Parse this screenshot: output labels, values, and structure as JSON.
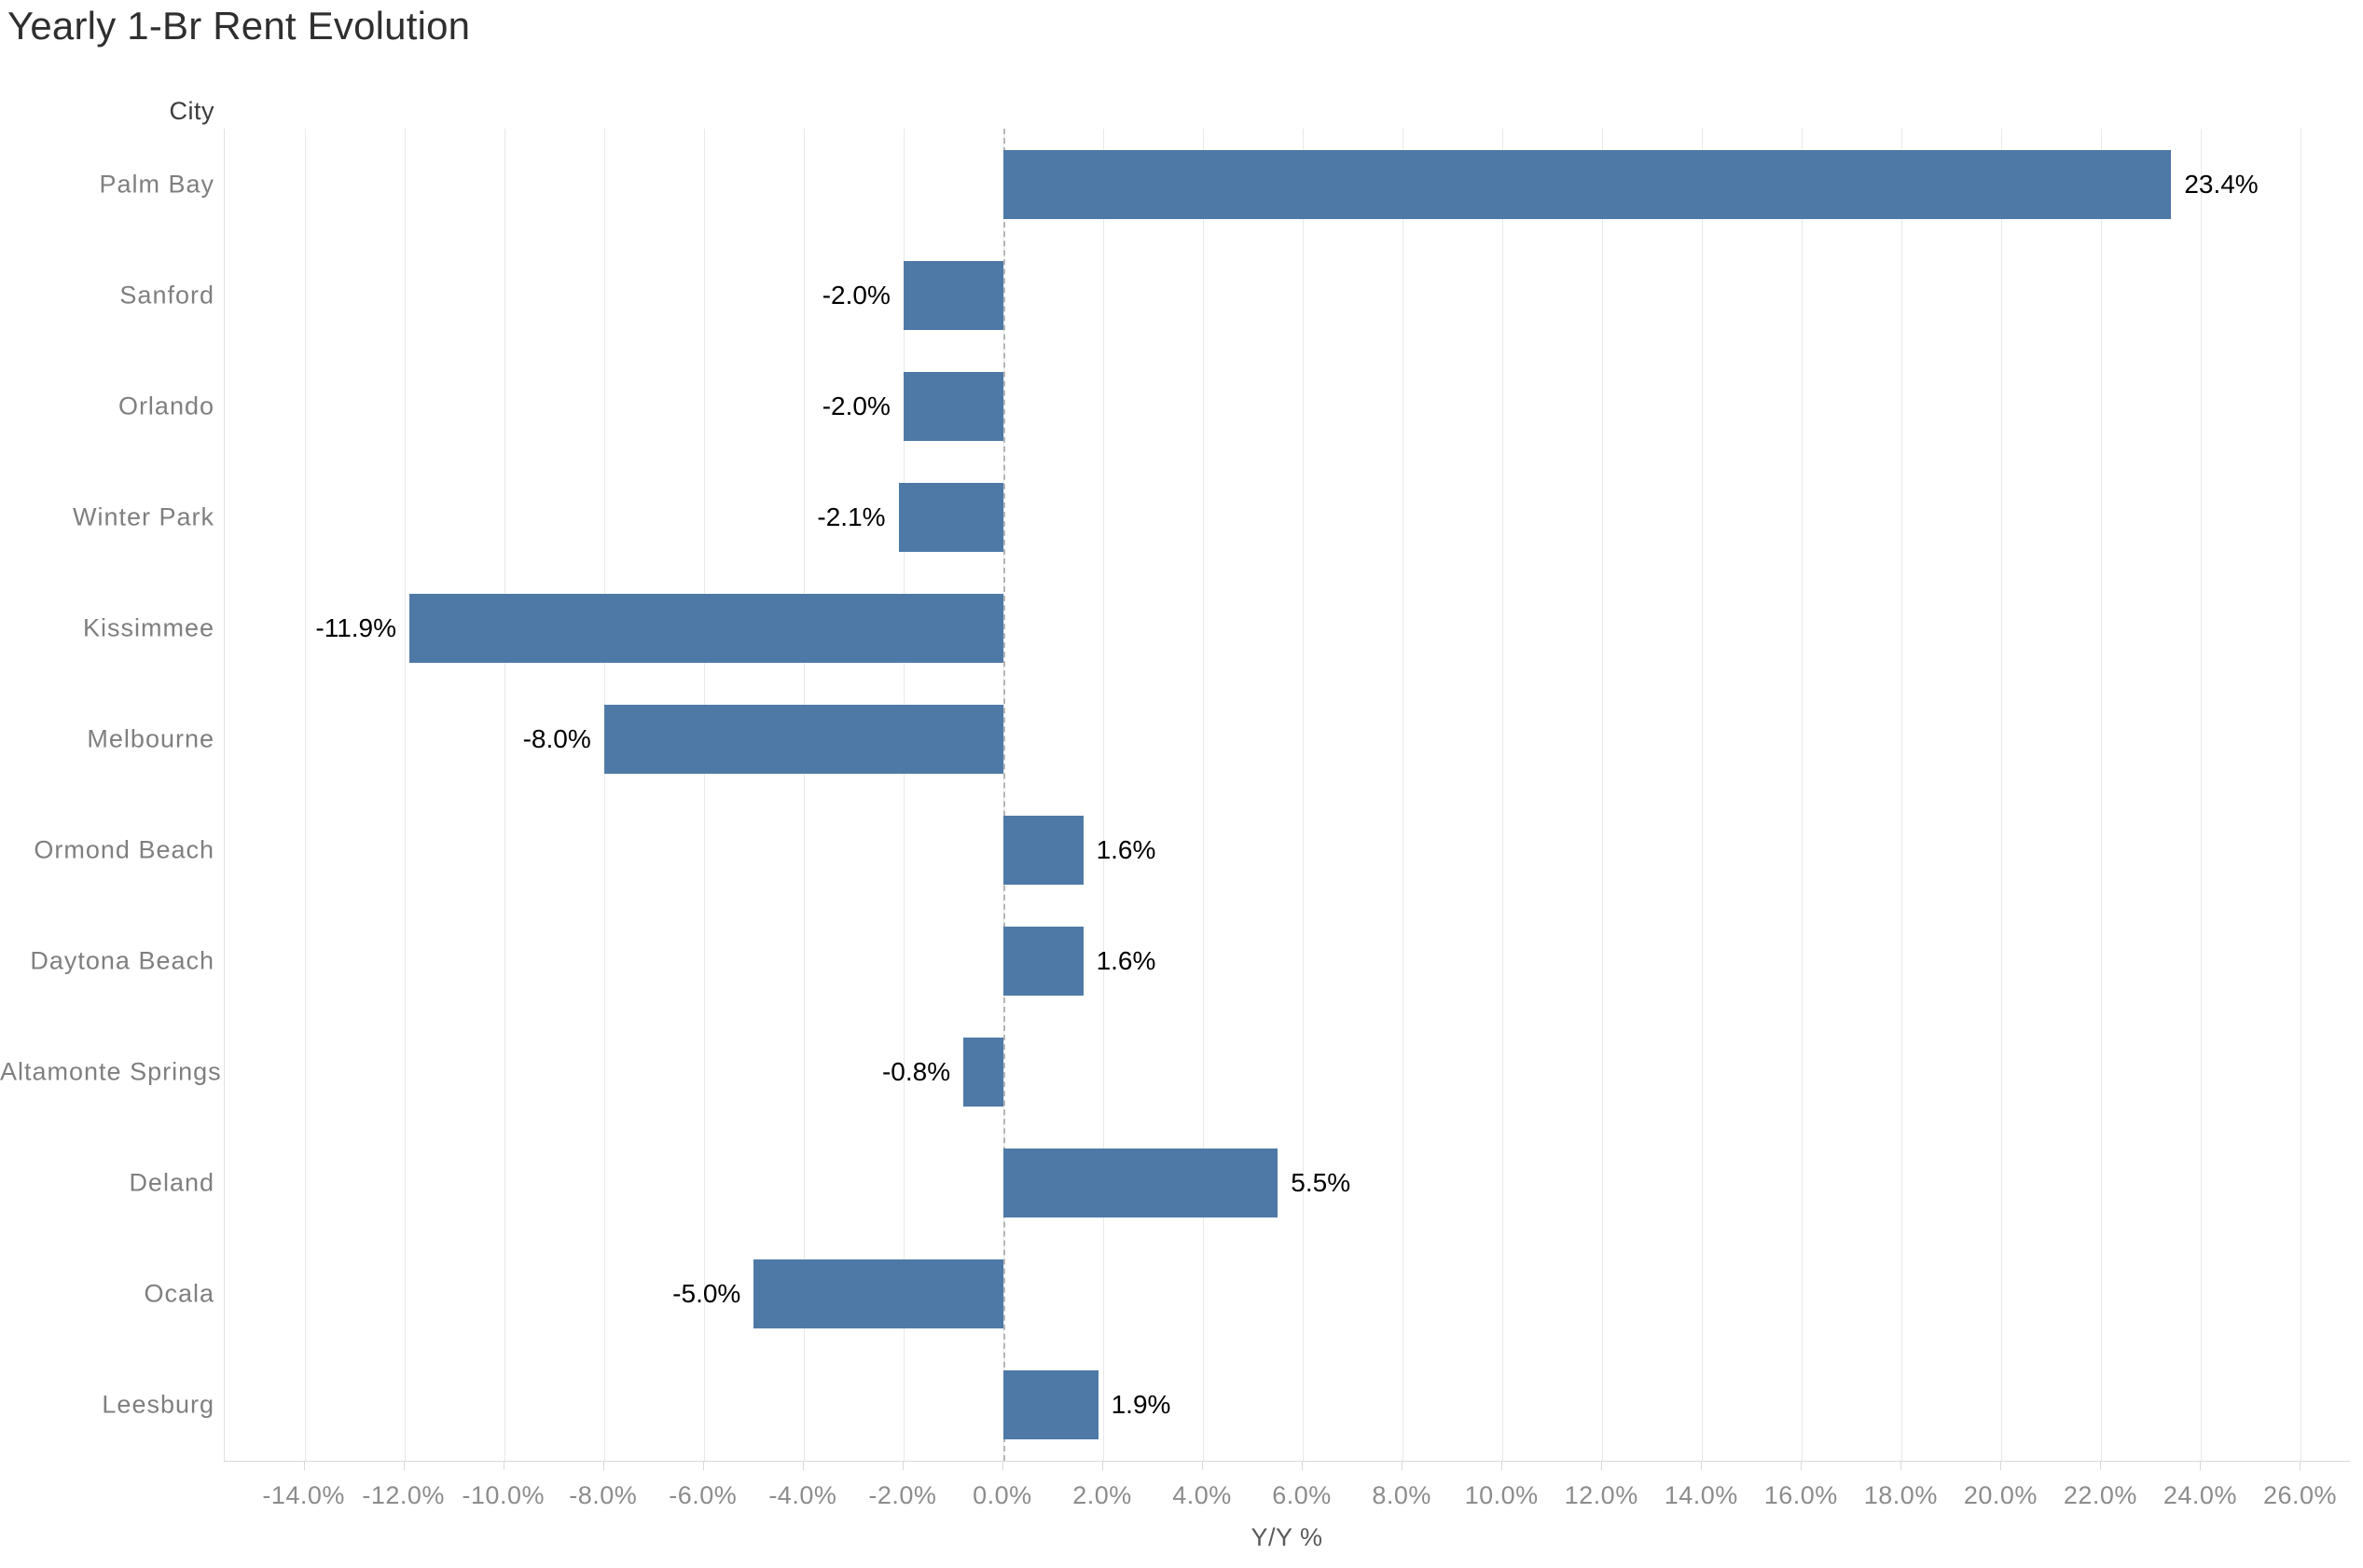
{
  "title": "Yearly 1-Br Rent Evolution",
  "row_header": "City",
  "colors": {
    "bar": "#4e79a7",
    "title_text": "#2f2f2f",
    "category_text": "#7f7f7f",
    "tick_text": "#8c8c8c",
    "axis_title_text": "#5a5a5a",
    "header_text": "#3c3c3c",
    "value_label_text": "#000000",
    "gridline": "#e9e9e9",
    "axis_line": "#d9d9d9",
    "zero_line": "#b5b5b5",
    "background": "#ffffff"
  },
  "x_axis": {
    "label": "Y/Y %",
    "tick_values": [
      -14,
      -12,
      -10,
      -8,
      -6,
      -4,
      -2,
      0,
      2,
      4,
      6,
      8,
      10,
      12,
      14,
      16,
      18,
      20,
      22,
      24,
      26
    ],
    "tick_labels": [
      "-14.0%",
      "-12.0%",
      "-10.0%",
      "-8.0%",
      "-6.0%",
      "-4.0%",
      "-2.0%",
      "0.0%",
      "2.0%",
      "4.0%",
      "6.0%",
      "8.0%",
      "10.0%",
      "12.0%",
      "14.0%",
      "16.0%",
      "18.0%",
      "20.0%",
      "22.0%",
      "24.0%",
      "26.0%"
    ],
    "range": [
      -15.6,
      27.0
    ]
  },
  "chart_data": {
    "type": "bar",
    "orientation": "horizontal",
    "title": "Yearly 1-Br Rent Evolution",
    "xlabel": "Y/Y %",
    "ylabel": "City",
    "xlim": [
      -15.6,
      27.0
    ],
    "grid": true,
    "zero_line": "dashed",
    "legend": "none",
    "bar_color": "#4e79a7",
    "categories": [
      "Palm Bay",
      "Sanford",
      "Orlando",
      "Winter Park",
      "Kissimmee",
      "Melbourne",
      "Ormond Beach",
      "Daytona Beach",
      "Altamonte Springs",
      "Deland",
      "Ocala",
      "Leesburg"
    ],
    "values": [
      23.4,
      -2.0,
      -2.0,
      -2.1,
      -11.9,
      -8.0,
      1.6,
      1.6,
      -0.8,
      5.5,
      -5.0,
      1.9
    ],
    "value_labels": [
      "23.4%",
      "-2.0%",
      "-2.0%",
      "-2.1%",
      "-11.9%",
      "-8.0%",
      "1.6%",
      "1.6%",
      "-0.8%",
      "5.5%",
      "-5.0%",
      "1.9%"
    ]
  }
}
